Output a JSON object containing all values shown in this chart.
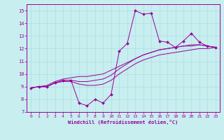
{
  "xlabel": "Windchill (Refroidissement éolien,°C)",
  "ylabel": "",
  "background_color": "#c8eef0",
  "grid_color": "#aadddd",
  "line_color": "#990099",
  "marker_color": "#990099",
  "xlim": [
    -0.5,
    23.5
  ],
  "ylim": [
    7,
    15.5
  ],
  "yticks": [
    7,
    8,
    9,
    10,
    11,
    12,
    13,
    14,
    15
  ],
  "xticks": [
    0,
    1,
    2,
    3,
    4,
    5,
    6,
    7,
    8,
    9,
    10,
    11,
    12,
    13,
    14,
    15,
    16,
    17,
    18,
    19,
    20,
    21,
    22,
    23
  ],
  "hours": [
    0,
    1,
    2,
    3,
    4,
    5,
    6,
    7,
    8,
    9,
    10,
    11,
    12,
    13,
    14,
    15,
    16,
    17,
    18,
    19,
    20,
    21,
    22,
    23
  ],
  "line1": [
    8.9,
    9.0,
    9.0,
    9.3,
    9.5,
    9.5,
    7.7,
    7.5,
    8.0,
    7.7,
    8.4,
    11.8,
    12.4,
    15.0,
    14.7,
    14.8,
    12.6,
    12.5,
    12.1,
    12.6,
    13.2,
    12.5,
    12.2,
    12.1
  ],
  "line2": [
    8.9,
    9.0,
    9.0,
    9.3,
    9.4,
    9.4,
    9.2,
    9.1,
    9.1,
    9.2,
    9.5,
    10.0,
    10.4,
    10.8,
    11.1,
    11.3,
    11.5,
    11.6,
    11.7,
    11.8,
    11.9,
    12.0,
    12.0,
    12.1
  ],
  "line3": [
    8.9,
    9.0,
    9.0,
    9.3,
    9.5,
    9.5,
    9.4,
    9.4,
    9.5,
    9.6,
    9.9,
    10.4,
    10.8,
    11.2,
    11.5,
    11.7,
    11.9,
    12.0,
    12.1,
    12.2,
    12.2,
    12.3,
    12.2,
    12.1
  ],
  "line4": [
    8.9,
    9.0,
    9.1,
    9.4,
    9.6,
    9.7,
    9.8,
    9.8,
    9.9,
    10.0,
    10.3,
    10.6,
    10.9,
    11.2,
    11.5,
    11.7,
    11.9,
    12.0,
    12.1,
    12.2,
    12.3,
    12.3,
    12.2,
    12.1
  ]
}
